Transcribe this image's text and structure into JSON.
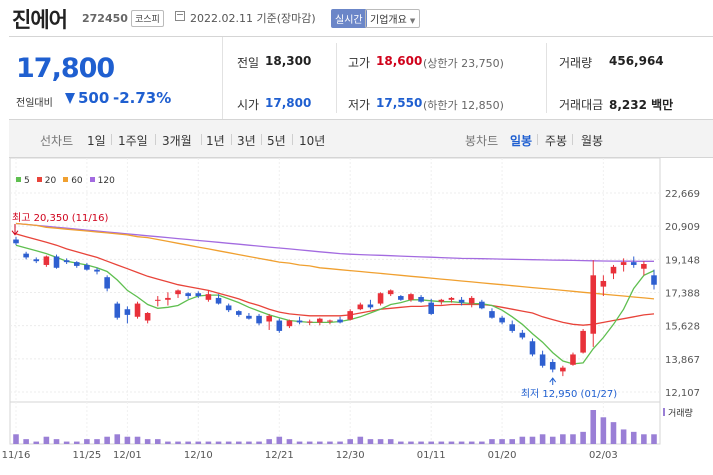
{
  "header": {
    "name": "진에어",
    "code": "272450",
    "market": "코스피",
    "date": "2022.02.11 기준(장마감)",
    "realtime": "실시간",
    "corp_info": "기업개요"
  },
  "summary": {
    "price": "17,800",
    "change_label": "전일대비",
    "change": "500",
    "change_pct": "-2.73%",
    "prev_close_label": "전일",
    "prev_close": "18,300",
    "open_label": "시가",
    "open": "17,800",
    "high_label": "고가",
    "high": "18,600",
    "upper_limit": "(상한가 23,750)",
    "low_label": "저가",
    "low": "17,550",
    "lower_limit": "(하한가 12,850)",
    "volume_label": "거래량",
    "volume": "456,964",
    "amount_label": "거래대금",
    "amount": "8,232 백만"
  },
  "toolbar": {
    "line_chart": "선차트",
    "periods": [
      "1일",
      "1주일",
      "3개월",
      "1년",
      "3년",
      "5년",
      "10년"
    ],
    "candle_chart": "봉차트",
    "candle_periods": [
      "일봉",
      "주봉",
      "월봉"
    ],
    "active_candle": "일봉"
  },
  "colors": {
    "up": "#e8313a",
    "down": "#2e5fd0",
    "ma5": "#5fbf50",
    "ma20": "#e8443a",
    "ma60": "#f0a030",
    "ma120": "#a36be0",
    "volume": "#9a7fd6",
    "accent": "#1f5fd0"
  },
  "chart_data": {
    "type": "candlestick",
    "legend": [
      {
        "name": "5",
        "color": "#5fbf50"
      },
      {
        "name": "20",
        "color": "#e8443a"
      },
      {
        "name": "60",
        "color": "#f0a030"
      },
      {
        "name": "120",
        "color": "#a36be0"
      }
    ],
    "y_ticks": [
      "22,669",
      "20,909",
      "19,148",
      "17,388",
      "15,628",
      "13,867",
      "12,107"
    ],
    "y_tick_values": [
      22669,
      20909,
      19148,
      17388,
      15628,
      13867,
      12107
    ],
    "ylim": [
      12107,
      22669
    ],
    "x_ticks": [
      "11/16",
      "11/25",
      "12/01",
      "12/10",
      "12/21",
      "12/30",
      "01/11",
      "01/20",
      "02/03"
    ],
    "x_tick_index": [
      0,
      7,
      11,
      18,
      26,
      33,
      41,
      48,
      58
    ],
    "volume_label": "거래량",
    "annotations": [
      {
        "text": "최고 20,350 (11/16)",
        "index": 0,
        "value": 20350,
        "kind": "high"
      },
      {
        "text": "최저 12,950 (01/27)",
        "index": 53,
        "value": 12950,
        "kind": "low"
      }
    ],
    "candles": [
      [
        20200,
        20350,
        19900,
        20000
      ],
      [
        19450,
        19550,
        19150,
        19250
      ],
      [
        19150,
        19250,
        18950,
        19050
      ],
      [
        18850,
        19350,
        18750,
        19300
      ],
      [
        19300,
        19400,
        18650,
        18700
      ],
      [
        19100,
        19200,
        18900,
        19000
      ],
      [
        19000,
        19050,
        18700,
        18800
      ],
      [
        18850,
        18950,
        18550,
        18600
      ],
      [
        18600,
        18700,
        18350,
        18500
      ],
      [
        18200,
        18300,
        17450,
        17600
      ],
      [
        16800,
        16900,
        15950,
        16050
      ],
      [
        16500,
        16650,
        15750,
        16200
      ],
      [
        16100,
        16900,
        16000,
        16800
      ],
      [
        15900,
        16350,
        15750,
        16300
      ],
      [
        16950,
        17200,
        16650,
        17000
      ],
      [
        17000,
        17400,
        16700,
        17100
      ],
      [
        17300,
        17550,
        17100,
        17500
      ],
      [
        17350,
        17400,
        17050,
        17200
      ],
      [
        17350,
        17450,
        17100,
        17200
      ],
      [
        17000,
        17500,
        16900,
        17300
      ],
      [
        17100,
        17300,
        16750,
        16800
      ],
      [
        16700,
        16800,
        16350,
        16450
      ],
      [
        16400,
        16450,
        16100,
        16200
      ],
      [
        16150,
        16300,
        15950,
        16000
      ],
      [
        16150,
        16250,
        15650,
        15750
      ],
      [
        15850,
        16250,
        15400,
        16150
      ],
      [
        15900,
        16000,
        15250,
        15350
      ],
      [
        15600,
        15950,
        15500,
        15900
      ],
      [
        15900,
        16100,
        15700,
        15800
      ],
      [
        15800,
        15950,
        15650,
        15850
      ],
      [
        15800,
        16050,
        15650,
        16000
      ],
      [
        15850,
        15950,
        15700,
        15900
      ],
      [
        15950,
        16100,
        15750,
        15800
      ],
      [
        15950,
        16500,
        15900,
        16400
      ],
      [
        16500,
        16850,
        16450,
        16750
      ],
      [
        16750,
        17000,
        16500,
        16600
      ],
      [
        16800,
        17400,
        16700,
        17350
      ],
      [
        17300,
        17550,
        17200,
        17500
      ],
      [
        17200,
        17250,
        16950,
        17000
      ],
      [
        17000,
        17350,
        16900,
        17300
      ],
      [
        17150,
        17250,
        16850,
        16900
      ],
      [
        16850,
        17050,
        16200,
        16250
      ],
      [
        16900,
        17050,
        16750,
        17000
      ],
      [
        17000,
        17150,
        16850,
        17100
      ],
      [
        17000,
        17150,
        16700,
        16850
      ],
      [
        16800,
        17200,
        16600,
        17100
      ],
      [
        16900,
        17000,
        16500,
        16550
      ],
      [
        16400,
        16550,
        16000,
        16050
      ],
      [
        16050,
        16150,
        15700,
        15800
      ],
      [
        15700,
        15900,
        15250,
        15350
      ],
      [
        15250,
        15400,
        14900,
        15000
      ],
      [
        14800,
        14950,
        14000,
        14100
      ],
      [
        14100,
        14300,
        13400,
        13500
      ],
      [
        13700,
        13850,
        13150,
        13300
      ],
      [
        13200,
        13500,
        12950,
        13400
      ],
      [
        13550,
        14200,
        13500,
        14100
      ],
      [
        14200,
        15450,
        14150,
        15350
      ],
      [
        15200,
        19100,
        14500,
        18300
      ],
      [
        17700,
        18300,
        17200,
        18000
      ],
      [
        18400,
        18850,
        18100,
        18750
      ],
      [
        18850,
        19200,
        18500,
        19000
      ],
      [
        19000,
        19300,
        18700,
        18850
      ],
      [
        18650,
        19050,
        18300,
        18900
      ],
      [
        18300,
        18600,
        17550,
        17800
      ]
    ],
    "ma5": [
      19900,
      19750,
      19600,
      19450,
      19250,
      19050,
      18950,
      18850,
      18700,
      18500,
      18050,
      17500,
      17150,
      16750,
      16550,
      16600,
      16700,
      17000,
      17200,
      17250,
      17250,
      17050,
      16850,
      16600,
      16400,
      16200,
      16050,
      15900,
      15850,
      15800,
      15800,
      15800,
      15850,
      15950,
      16100,
      16300,
      16500,
      16750,
      16850,
      17000,
      17000,
      16950,
      16900,
      16900,
      16850,
      16800,
      16800,
      16700,
      16450,
      16100,
      15700,
      15200,
      14750,
      14200,
      13750,
      13600,
      13650,
      14400,
      15000,
      15700,
      16500,
      17600,
      18300,
      18550
    ],
    "ma20": [
      20500,
      20350,
      20200,
      20050,
      19900,
      19700,
      19550,
      19400,
      19250,
      19050,
      18850,
      18650,
      18450,
      18250,
      18100,
      17950,
      17800,
      17700,
      17600,
      17500,
      17350,
      17200,
      17050,
      16850,
      16700,
      16500,
      16350,
      16250,
      16200,
      16150,
      16150,
      16150,
      16150,
      16200,
      16300,
      16400,
      16500,
      16550,
      16600,
      16650,
      16650,
      16700,
      16700,
      16750,
      16750,
      16750,
      16750,
      16700,
      16600,
      16500,
      16400,
      16300,
      16100,
      15950,
      15800,
      15700,
      15650,
      15700,
      15800,
      15900,
      16000,
      16100,
      16200,
      16250
    ],
    "ma60": [
      21050,
      21000,
      20950,
      20850,
      20800,
      20750,
      20700,
      20650,
      20600,
      20550,
      20500,
      20450,
      20350,
      20300,
      20200,
      20100,
      20000,
      19900,
      19800,
      19700,
      19600,
      19500,
      19400,
      19300,
      19200,
      19100,
      19000,
      18950,
      18850,
      18800,
      18700,
      18650,
      18600,
      18550,
      18500,
      18450,
      18400,
      18350,
      18300,
      18250,
      18200,
      18150,
      18100,
      18050,
      18000,
      17950,
      17900,
      17850,
      17800,
      17750,
      17700,
      17650,
      17600,
      17550,
      17500,
      17450,
      17400,
      17350,
      17300,
      17250,
      17200,
      17150,
      17100,
      17050
    ],
    "ma120": [
      21050,
      21000,
      20950,
      20900,
      20850,
      20800,
      20750,
      20700,
      20650,
      20600,
      20550,
      20500,
      20450,
      20400,
      20350,
      20300,
      20250,
      20200,
      20150,
      20100,
      20050,
      20000,
      19950,
      19900,
      19850,
      19800,
      19750,
      19700,
      19650,
      19600,
      19550,
      19500,
      19450,
      19420,
      19400,
      19380,
      19360,
      19340,
      19320,
      19300,
      19280,
      19260,
      19240,
      19220,
      19200,
      19190,
      19180,
      19170,
      19160,
      19150,
      19140,
      19130,
      19120,
      19110,
      19100,
      19090,
      19080,
      19070,
      19060,
      19055,
      19050,
      19048,
      19046,
      19045
    ],
    "volume": [
      4,
      2,
      1,
      3,
      2,
      1,
      1,
      2,
      2,
      3,
      4,
      3,
      3,
      2,
      2,
      1,
      1,
      1,
      1,
      1,
      1,
      1,
      1,
      1,
      1,
      2,
      3,
      2,
      1,
      1,
      1,
      1,
      1,
      2,
      3,
      2,
      2,
      2,
      1,
      1,
      1,
      1,
      1,
      1,
      1,
      1,
      1,
      2,
      2,
      2,
      3,
      3,
      4,
      3,
      4,
      4,
      5,
      14,
      11,
      9,
      6,
      5,
      4,
      4
    ]
  }
}
